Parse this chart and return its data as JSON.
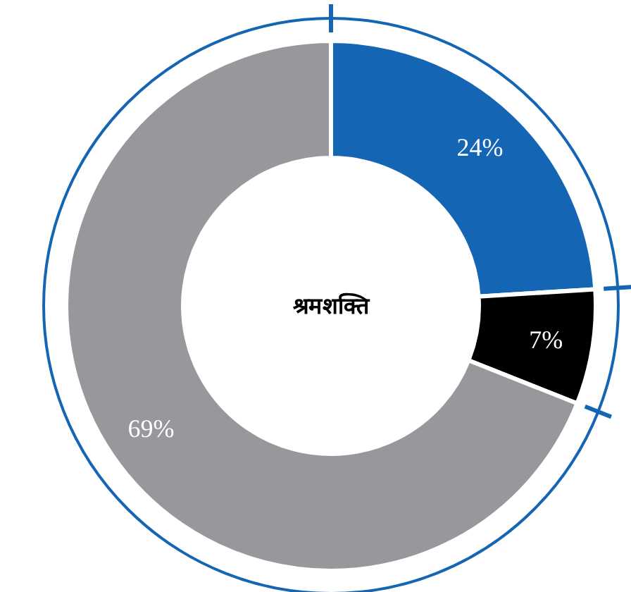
{
  "chart_data": {
    "type": "donut",
    "title": "श्रमशक्ति",
    "categories": [
      null,
      null,
      null
    ],
    "values": [
      24,
      7,
      69
    ],
    "value_labels": [
      "24%",
      "7%",
      "69%"
    ],
    "colors": [
      "#1565b5",
      "#000000",
      "#97989b"
    ]
  }
}
